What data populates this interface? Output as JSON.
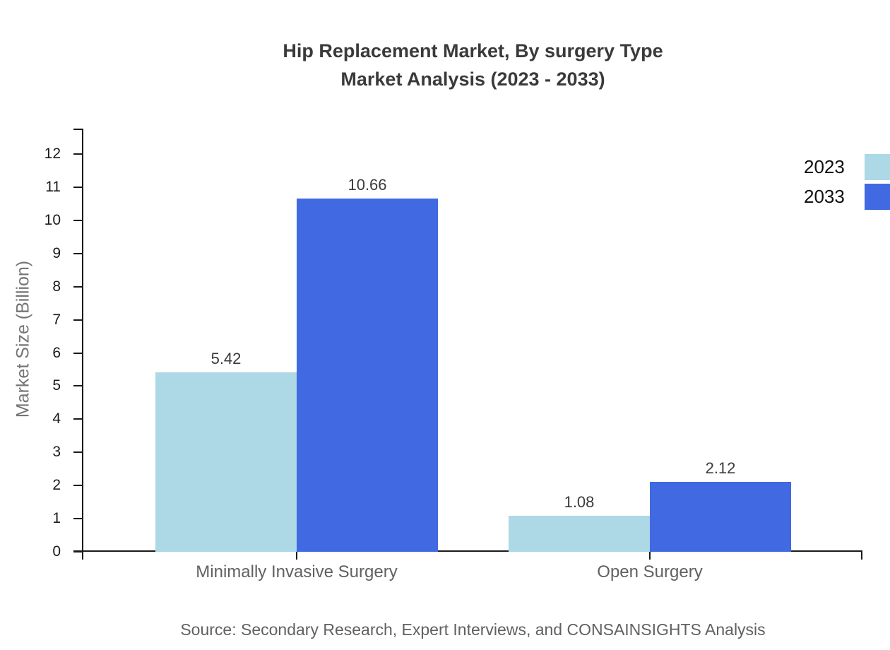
{
  "chart_data": {
    "type": "bar",
    "title": "Hip Replacement Market, By surgery Type",
    "subtitle": "Market Analysis (2023 - 2033)",
    "categories": [
      "Minimally Invasive Surgery",
      "Open Surgery"
    ],
    "series": [
      {
        "name": "2023",
        "color": "#ADD8E6",
        "values": [
          5.42,
          1.08
        ]
      },
      {
        "name": "2033",
        "color": "#4169E1",
        "values": [
          10.66,
          2.12
        ]
      }
    ],
    "xlabel": "",
    "ylabel": "Market Size (Billion)",
    "ylim": [
      0,
      12.8
    ],
    "yticks": [
      0,
      1,
      2,
      3,
      4,
      5,
      6,
      7,
      8,
      9,
      10,
      11,
      12
    ],
    "grid": false,
    "legend_position": "top-right",
    "value_labels": true
  },
  "source_note": "Source: Secondary Research, Expert Interviews, and CONSAINSIGHTS Analysis",
  "colors": {
    "series_2023": "#ADD8E6",
    "series_2033": "#4169E1",
    "title_text": "#3A3A3A",
    "axis_line": "#1A1A1A",
    "tick_label": "#1A1A1A",
    "category_label": "#616161",
    "axis_title": "#757575",
    "source_text": "#616161",
    "background": "#FFFFFF"
  }
}
